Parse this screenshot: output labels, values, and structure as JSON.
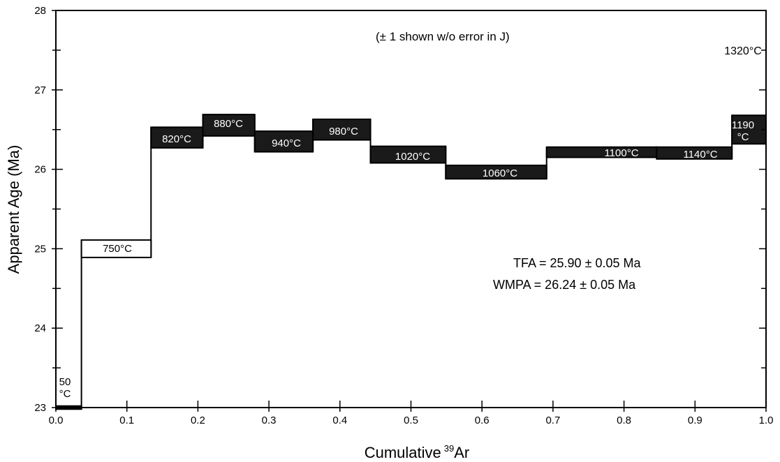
{
  "chart_data": {
    "type": "step",
    "title": "",
    "xlabel": "Cumulative",
    "xlabel_sup": "39",
    "xlabel_suffix": "Ar",
    "ylabel": "Apparent Age (Ma)",
    "xlim": [
      0.0,
      1.0
    ],
    "ylim": [
      23,
      28
    ],
    "x_ticks": [
      "0.0",
      "0.1",
      "0.2",
      "0.3",
      "0.4",
      "0.5",
      "0.6",
      "0.7",
      "0.8",
      "0.9",
      "1.0"
    ],
    "y_ticks": [
      "23",
      "24",
      "25",
      "26",
      "27",
      "28"
    ],
    "grid": false,
    "note": "(± 1  shown w/o error in J)",
    "stats": [
      "TFA = 25.90 ± 0.05 Ma",
      "WMPA = 26.24 ± 0.05 Ma"
    ],
    "steps": [
      {
        "label": "50 °C",
        "x0": 0.0,
        "x1": 0.036,
        "y_low": 22.98,
        "y_high": 23.02,
        "filled": true
      },
      {
        "label": "750°C",
        "x0": 0.036,
        "x1": 0.134,
        "y_low": 24.89,
        "y_high": 25.11,
        "filled": false
      },
      {
        "label": "820°C",
        "x0": 0.134,
        "x1": 0.207,
        "y_low": 26.27,
        "y_high": 26.53,
        "filled": true
      },
      {
        "label": "880°C",
        "x0": 0.207,
        "x1": 0.28,
        "y_low": 26.42,
        "y_high": 26.69,
        "filled": true
      },
      {
        "label": "940°C",
        "x0": 0.28,
        "x1": 0.362,
        "y_low": 26.22,
        "y_high": 26.48,
        "filled": true
      },
      {
        "label": "980°C",
        "x0": 0.362,
        "x1": 0.443,
        "y_low": 26.37,
        "y_high": 26.63,
        "filled": true
      },
      {
        "label": "1020°C",
        "x0": 0.443,
        "x1": 0.549,
        "y_low": 26.08,
        "y_high": 26.29,
        "filled": true
      },
      {
        "label": "1060°C",
        "x0": 0.549,
        "x1": 0.691,
        "y_low": 25.88,
        "y_high": 26.05,
        "filled": true
      },
      {
        "label": "1100°C",
        "x0": 0.691,
        "x1": 0.846,
        "y_low": 26.15,
        "y_high": 26.28,
        "filled": true
      },
      {
        "label": "1140°C",
        "x0": 0.846,
        "x1": 0.952,
        "y_low": 26.13,
        "y_high": 26.28,
        "filled": true
      },
      {
        "label": "1190 °C",
        "x0": 0.952,
        "x1": 1.0,
        "y_low": 26.32,
        "y_high": 26.68,
        "filled": true
      },
      {
        "label": "1320°C",
        "x0": 1.0,
        "x1": 1.0,
        "y_low": 27.5,
        "y_high": 27.5,
        "filled": false
      }
    ]
  }
}
